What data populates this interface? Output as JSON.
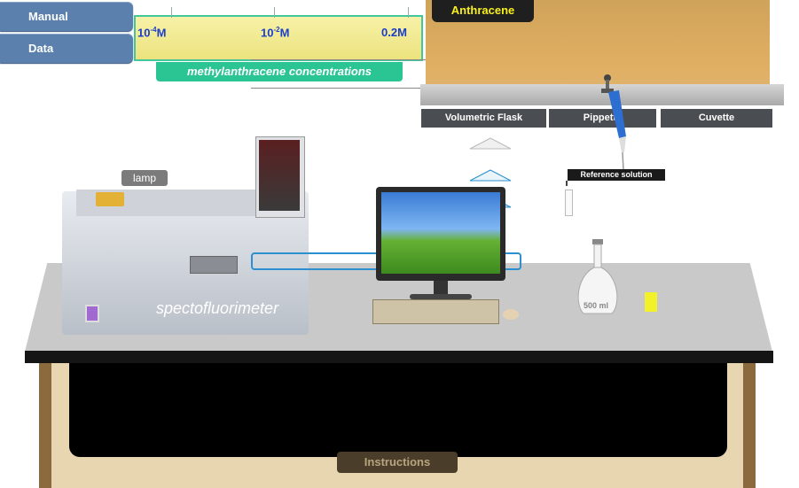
{
  "menu": {
    "manual_label": "Manual",
    "data_label": "Data"
  },
  "concentration_slider": {
    "ticks": [
      {
        "base": "10",
        "exp": "-4",
        "unit": "M"
      },
      {
        "base": "10",
        "exp": "-2",
        "unit": "M"
      },
      {
        "label": "0.2M"
      }
    ],
    "caption": "methylanthracene concentrations"
  },
  "shelf": {
    "tab_label": "Anthracene",
    "buttons": [
      "Volumetric Flask",
      "Pippette",
      "Cuvette"
    ]
  },
  "instrument": {
    "label": "spectofluorimeter",
    "lamp_label": "lamp"
  },
  "reference": {
    "label": "Reference solution"
  },
  "flask": {
    "volume_label": "500 ml"
  },
  "footer": {
    "instructions_label": "Instructions"
  }
}
